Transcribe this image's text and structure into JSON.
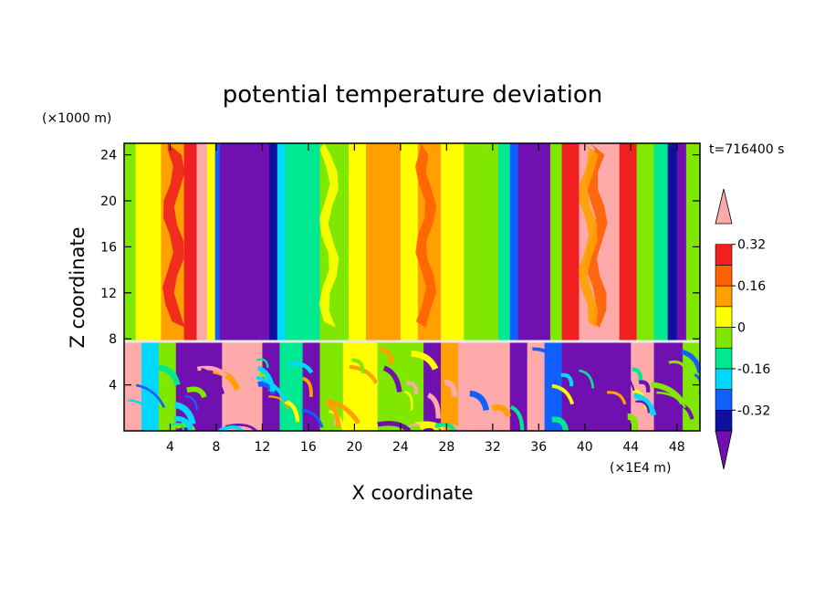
{
  "chart_data": {
    "type": "heatmap",
    "title": "potential temperature deviation",
    "xlabel": "X coordinate",
    "ylabel": "Z coordinate",
    "x_unit": "(×1E4 m)",
    "y_unit": "(×1000 m)",
    "time_label": "t=716400 s",
    "xlim": [
      0,
      50
    ],
    "ylim": [
      0,
      25
    ],
    "x_ticks": [
      4,
      8,
      12,
      16,
      20,
      24,
      28,
      32,
      36,
      40,
      44,
      48
    ],
    "y_ticks": [
      4,
      8,
      12,
      16,
      20,
      24
    ],
    "colorbar": {
      "levels": [
        -0.4,
        -0.32,
        -0.24,
        -0.16,
        -0.08,
        0,
        0.08,
        0.16,
        0.24,
        0.32,
        0.4
      ],
      "labels": [
        "0.32",
        "0.16",
        "0",
        "-0.16",
        "-0.32"
      ],
      "label_values": [
        0.32,
        0.16,
        0,
        -0.16,
        -0.32
      ],
      "colors": [
        "#7010b0",
        "#1010a0",
        "#1060ff",
        "#00d8ff",
        "#00e890",
        "#80e800",
        "#ffff00",
        "#ffa000",
        "#ff6000",
        "#f02020",
        "#ffaaaa"
      ],
      "extend": "both"
    },
    "upper_bands": [
      {
        "x0": 0.0,
        "x1": 1.0,
        "color": "#80e800"
      },
      {
        "x0": 1.0,
        "x1": 3.2,
        "color": "#ffff00"
      },
      {
        "x0": 3.2,
        "x1": 5.2,
        "color": "#ffa000"
      },
      {
        "x0": 5.2,
        "x1": 6.3,
        "color": "#f02020"
      },
      {
        "x0": 6.3,
        "x1": 7.2,
        "color": "#ffaaaa"
      },
      {
        "x0": 7.2,
        "x1": 7.9,
        "color": "#ffff00"
      },
      {
        "x0": 7.9,
        "x1": 8.3,
        "color": "#1060ff"
      },
      {
        "x0": 8.3,
        "x1": 12.6,
        "color": "#7010b0"
      },
      {
        "x0": 12.6,
        "x1": 13.3,
        "color": "#1010a0"
      },
      {
        "x0": 13.3,
        "x1": 14.0,
        "color": "#00d8ff"
      },
      {
        "x0": 14.0,
        "x1": 17.0,
        "color": "#00e890"
      },
      {
        "x0": 17.0,
        "x1": 19.5,
        "color": "#80e800"
      },
      {
        "x0": 19.5,
        "x1": 21.0,
        "color": "#ffff00"
      },
      {
        "x0": 21.0,
        "x1": 24.0,
        "color": "#ffa000"
      },
      {
        "x0": 24.0,
        "x1": 25.5,
        "color": "#ffff00"
      },
      {
        "x0": 25.5,
        "x1": 27.5,
        "color": "#ffa000"
      },
      {
        "x0": 27.5,
        "x1": 29.5,
        "color": "#ffff00"
      },
      {
        "x0": 29.5,
        "x1": 32.5,
        "color": "#80e800"
      },
      {
        "x0": 32.5,
        "x1": 33.5,
        "color": "#00e890"
      },
      {
        "x0": 33.5,
        "x1": 34.2,
        "color": "#1060ff"
      },
      {
        "x0": 34.2,
        "x1": 37.0,
        "color": "#7010b0"
      },
      {
        "x0": 37.0,
        "x1": 38.0,
        "color": "#80e800"
      },
      {
        "x0": 38.0,
        "x1": 39.5,
        "color": "#f02020"
      },
      {
        "x0": 39.5,
        "x1": 43.0,
        "color": "#ffaaaa"
      },
      {
        "x0": 43.0,
        "x1": 44.5,
        "color": "#f02020"
      },
      {
        "x0": 44.5,
        "x1": 46.0,
        "color": "#80e800"
      },
      {
        "x0": 46.0,
        "x1": 47.2,
        "color": "#00e890"
      },
      {
        "x0": 47.2,
        "x1": 48.0,
        "color": "#1010a0"
      },
      {
        "x0": 48.0,
        "x1": 48.8,
        "color": "#7010b0"
      },
      {
        "x0": 48.8,
        "x1": 50.0,
        "color": "#80e800"
      }
    ],
    "lower_bands": [
      {
        "x0": 0.0,
        "x1": 1.5,
        "color": "#ffaaaa"
      },
      {
        "x0": 1.5,
        "x1": 3.0,
        "color": "#00d8ff"
      },
      {
        "x0": 3.0,
        "x1": 4.5,
        "color": "#80e800"
      },
      {
        "x0": 4.5,
        "x1": 8.5,
        "color": "#7010b0"
      },
      {
        "x0": 8.5,
        "x1": 12.0,
        "color": "#ffaaaa"
      },
      {
        "x0": 12.0,
        "x1": 13.5,
        "color": "#7010b0"
      },
      {
        "x0": 13.5,
        "x1": 15.5,
        "color": "#00e890"
      },
      {
        "x0": 15.5,
        "x1": 17.0,
        "color": "#7010b0"
      },
      {
        "x0": 17.0,
        "x1": 19.0,
        "color": "#80e800"
      },
      {
        "x0": 19.0,
        "x1": 22.0,
        "color": "#ffff00"
      },
      {
        "x0": 22.0,
        "x1": 26.0,
        "color": "#80e800"
      },
      {
        "x0": 26.0,
        "x1": 27.5,
        "color": "#7010b0"
      },
      {
        "x0": 27.5,
        "x1": 29.0,
        "color": "#ffa000"
      },
      {
        "x0": 29.0,
        "x1": 33.5,
        "color": "#ffaaaa"
      },
      {
        "x0": 33.5,
        "x1": 35.0,
        "color": "#7010b0"
      },
      {
        "x0": 35.0,
        "x1": 36.5,
        "color": "#ffaaaa"
      },
      {
        "x0": 36.5,
        "x1": 38.0,
        "color": "#1060ff"
      },
      {
        "x0": 38.0,
        "x1": 44.0,
        "color": "#7010b0"
      },
      {
        "x0": 44.0,
        "x1": 46.0,
        "color": "#ffaaaa"
      },
      {
        "x0": 46.0,
        "x1": 48.5,
        "color": "#7010b0"
      },
      {
        "x0": 48.5,
        "x1": 50.0,
        "color": "#80e800"
      }
    ]
  }
}
